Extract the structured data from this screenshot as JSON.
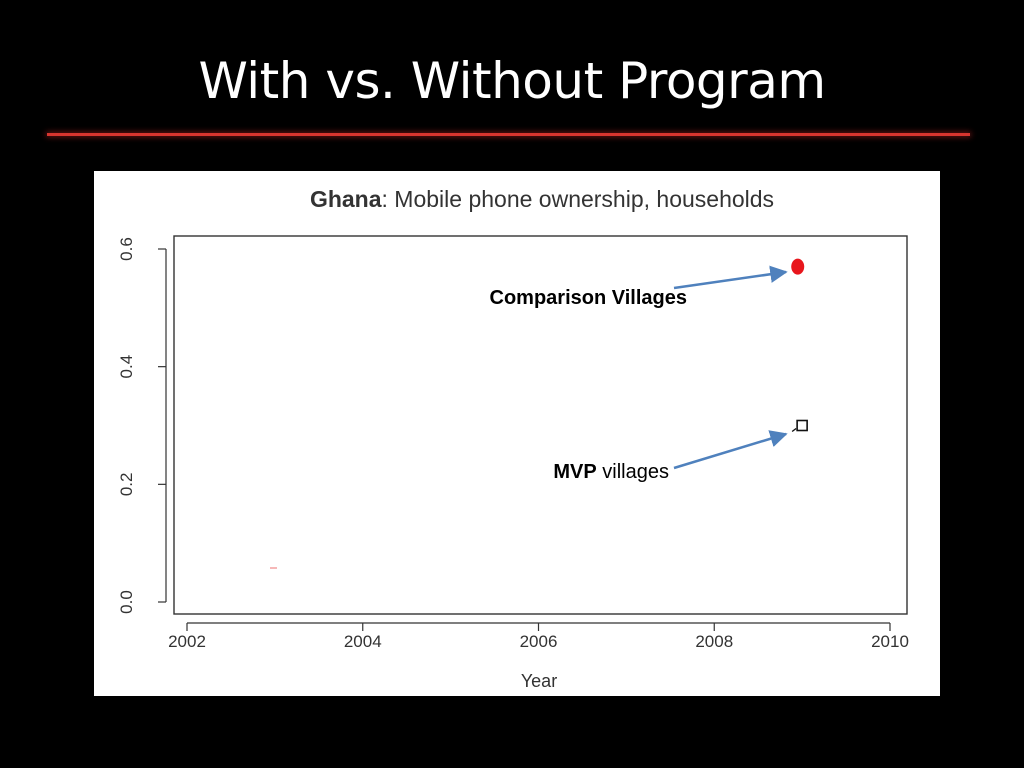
{
  "slide": {
    "title": "With vs. Without Program",
    "accent_color": "#d7352f",
    "background_color": "#000000"
  },
  "chart_data": {
    "type": "scatter",
    "title_bold": "Ghana",
    "title_rest": ": Mobile phone ownership, households",
    "xlabel": "Year",
    "ylabel": "",
    "xlim": [
      2002,
      2010
    ],
    "ylim": [
      0,
      0.6
    ],
    "x_ticks": [
      2002,
      2004,
      2006,
      2008,
      2010
    ],
    "y_ticks": [
      0.0,
      0.2,
      0.4,
      0.6
    ],
    "x_tick_labels": [
      "2002",
      "2004",
      "2006",
      "2008",
      "2010"
    ],
    "y_tick_labels": [
      "0.0",
      "0.2",
      "0.4",
      "0.6"
    ],
    "grid": false,
    "series": [
      {
        "label_bold": "Comparison Villages",
        "label_rest": "",
        "marker": "filled-circle",
        "color": "#e8161c",
        "points": [
          {
            "x": 2008.95,
            "y": 0.57
          }
        ]
      },
      {
        "label_bold": "MVP",
        "label_rest": " villages",
        "marker": "open-square",
        "color": "#111111",
        "points": [
          {
            "x": 2009.0,
            "y": 0.3
          }
        ]
      }
    ],
    "annotation_arrow_color": "#4f81bd"
  }
}
